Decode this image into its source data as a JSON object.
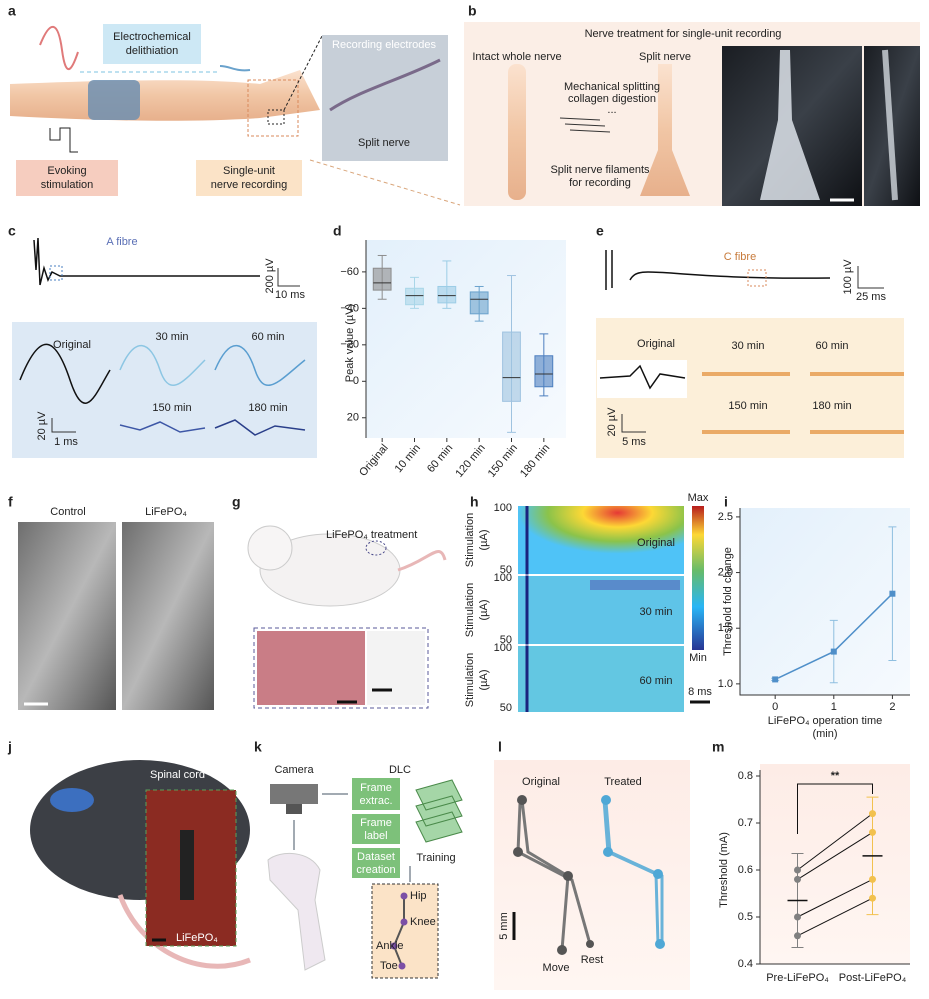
{
  "panels": {
    "a": {
      "label": "a",
      "delithiation": [
        "Electrochemical",
        "delithiation"
      ],
      "electrodes": "Recording electrodes",
      "split_nerve": "Split nerve",
      "stimulation": [
        "Evoking",
        "stimulation"
      ],
      "recording": [
        "Single-unit",
        "nerve recording"
      ]
    },
    "b": {
      "label": "b",
      "title": "Nerve treatment for single-unit recording",
      "intact": "Intact whole nerve",
      "split": "Split nerve",
      "steps": [
        "Mechanical splitting",
        "collagen digestion",
        "..."
      ],
      "filaments": [
        "Split nerve filaments",
        "for recording"
      ]
    },
    "c": {
      "label": "c",
      "fibre": "A fibre",
      "scale_v": "200 µV",
      "scale_t": "10 ms",
      "times": [
        "Original",
        "30 min",
        "60 min",
        "150 min",
        "180 min"
      ],
      "inset_v": "20 µV",
      "inset_t": "1 ms"
    },
    "e": {
      "label": "e",
      "fibre": "C fibre",
      "scale_v": "100 µV",
      "scale_t": "25 ms",
      "times": [
        "Original",
        "30 min",
        "60 min",
        "150 min",
        "180 min"
      ],
      "inset_v": "20 µV",
      "inset_t": "5 ms"
    },
    "f": {
      "label": "f",
      "control": "Control",
      "treated": "LiFePO₄"
    },
    "g": {
      "label": "g",
      "treatment": "LiFePO₄ treatment"
    },
    "h": {
      "label": "h",
      "ylabel": [
        "Stimulation",
        "(µA)"
      ],
      "ticks": [
        "100",
        "50"
      ],
      "rows": [
        "Original",
        "30 min",
        "60 min"
      ],
      "max": "Max",
      "min": "Min",
      "scale_t": "8 ms"
    },
    "j": {
      "label": "j",
      "spinal": "Spinal cord",
      "device": "LiFePO₄"
    },
    "k": {
      "label": "k",
      "camera": "Camera",
      "dlc": "DLC",
      "steps": [
        [
          "Frame",
          "extrac."
        ],
        [
          "Frame",
          "label"
        ],
        [
          "Dataset",
          "creation"
        ]
      ],
      "training": "Training",
      "joints": [
        "Hip",
        "Knee",
        "Ankle",
        "Toe"
      ]
    },
    "l": {
      "label": "l",
      "original": "Original",
      "treated": "Treated",
      "scale": "5 mm",
      "move": "Move",
      "rest": "Rest"
    },
    "i": {
      "label": "i"
    },
    "m": {
      "label": "m"
    },
    "d": {
      "label": "d"
    }
  },
  "chart_data": [
    {
      "type": "box",
      "ylabel": "Peak value (µV)",
      "categories": [
        "Original",
        "10 min",
        "60 min",
        "120 min",
        "150 min",
        "180 min"
      ],
      "colors": [
        "#8c8c8c",
        "#a9d6e8",
        "#9ccde6",
        "#6aa2cc",
        "#9fc3e0",
        "#4d7fbf"
      ],
      "boxes": [
        {
          "min": -69,
          "q1": -62,
          "median": -54,
          "q3": -50,
          "max": -45
        },
        {
          "min": -57,
          "q1": -51,
          "median": -47,
          "q3": -42,
          "max": -40
        },
        {
          "min": -66,
          "q1": -52,
          "median": -47,
          "q3": -43,
          "max": -40
        },
        {
          "min": -52,
          "q1": -49,
          "median": -45,
          "q3": -37,
          "max": -33
        },
        {
          "min": -58,
          "q1": -27,
          "median": -2,
          "q3": 11,
          "max": 28
        },
        {
          "min": -26,
          "q1": -14,
          "median": -4,
          "q3": 3,
          "max": 8
        }
      ],
      "ylim": [
        30,
        -72
      ],
      "yticks": [
        {
          "value": -60,
          "label": "−60"
        },
        {
          "value": -40,
          "label": "−40"
        },
        {
          "value": -20,
          "label": "−20"
        },
        0,
        20
      ]
    },
    {
      "type": "line",
      "xlabel": [
        "LiFePO₄ operation time",
        "(min)"
      ],
      "ylabel": "Threshold fold change",
      "color": "#4f8fc9",
      "x": [
        0,
        1,
        2
      ],
      "values": [
        1.04,
        1.29,
        1.81
      ],
      "errors": [
        0.01,
        0.28,
        0.6
      ],
      "xlim": [
        -0.6,
        2.3
      ],
      "xticks": [
        0,
        1,
        2
      ],
      "ylim": [
        0.9,
        2.58
      ],
      "yticks": [
        {
          "value": 1,
          "label": "1.0"
        },
        1.5,
        {
          "value": 2,
          "label": "2.0"
        },
        2.5
      ]
    },
    {
      "type": "paired",
      "ylabel": "Threshold (mA)",
      "categories": [
        "Pre-LiFePO₄",
        "Post-LiFePO₄"
      ],
      "colors": [
        "#808080",
        "#f2c14e"
      ],
      "pairs": [
        [
          0.6,
          0.72
        ],
        [
          0.58,
          0.68
        ],
        [
          0.5,
          0.58
        ],
        [
          0.46,
          0.54
        ]
      ],
      "means": [
        0.535,
        0.63
      ],
      "sd": [
        0.1,
        0.125
      ],
      "annotation": "**",
      "ylim": [
        0.4,
        0.8
      ],
      "yticks": [
        0.4,
        0.5,
        0.6,
        0.7,
        0.8
      ]
    }
  ]
}
